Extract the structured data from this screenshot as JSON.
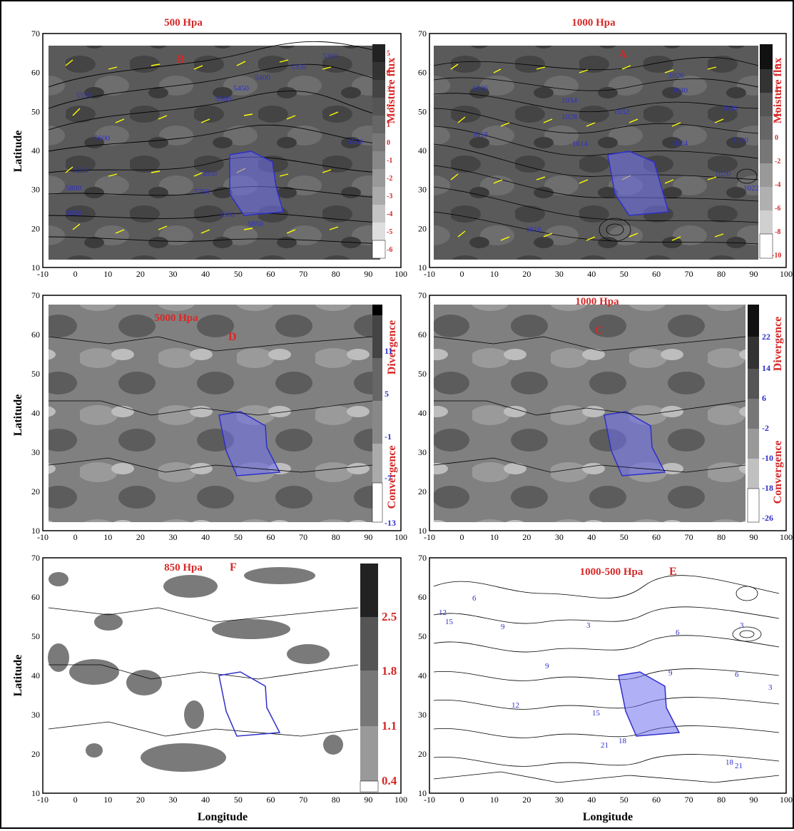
{
  "figure": {
    "axis_labels": {
      "latitude": "Latitude",
      "longitude": "Longitude"
    },
    "x_ticks": [
      "-10",
      "0",
      "10",
      "20",
      "30",
      "40",
      "50",
      "60",
      "70",
      "80",
      "90",
      "100"
    ],
    "y_ticks": [
      "10",
      "20",
      "30",
      "40",
      "50",
      "60",
      "70"
    ],
    "x_range": [
      -10,
      100
    ],
    "y_range": [
      10,
      70
    ],
    "colors": {
      "title_red": "#d62828",
      "contour_blue": "#2f2fc8",
      "iran_fill": "#6f6ff0",
      "arrow_yellow": "#ffff00"
    }
  },
  "panels": [
    {
      "id": "B",
      "title": "500 Hpa",
      "letter": "B",
      "type": "geopotential-height-moisture-flux",
      "colorbar": {
        "label": "Moisture flux",
        "ticks": [
          "5",
          "4",
          "3",
          "2",
          "1",
          "0",
          "-1",
          "-2",
          "-3",
          "-4",
          "-5",
          "-6"
        ]
      },
      "contour_labels": [
        "5300",
        "5350",
        "5400",
        "5450",
        "5500",
        "5550",
        "5600",
        "5650",
        "5700",
        "5750",
        "5800",
        "5850",
        "5500",
        "5550",
        "5600"
      ]
    },
    {
      "id": "A",
      "title": "1000 Hpa",
      "letter": "A",
      "type": "sea-level-pressure-moisture-flux",
      "colorbar": {
        "label": "Moisture flux",
        "ticks": [
          "6",
          "4",
          "2",
          "0",
          "-2",
          "-4",
          "-6",
          "-8",
          "-10"
        ]
      },
      "contour_labels": [
        "1026",
        "1030",
        "1034",
        "1032",
        "1036",
        "1030",
        "1028",
        "1024",
        "1020",
        "1016",
        "1014",
        "1018",
        "1022",
        "1026"
      ]
    },
    {
      "id": "D",
      "title": "5000 Hpa",
      "letter": "D",
      "type": "divergence",
      "colorbar": {
        "label_top": "Divergence",
        "label_bottom": "Convergence",
        "ticks": [
          "11",
          "5",
          "-1",
          "-7",
          "-13"
        ]
      }
    },
    {
      "id": "C",
      "title": "1000 Hpa",
      "letter": "C",
      "type": "divergence",
      "colorbar": {
        "label_top": "Divergence",
        "label_bottom": "Convergence",
        "ticks": [
          "22",
          "14",
          "6",
          "-2",
          "-10",
          "-18",
          "-26"
        ]
      }
    },
    {
      "id": "F",
      "title": "850 Hpa",
      "letter": "F",
      "type": "shaded-field",
      "colorbar": {
        "ticks": [
          "2.5",
          "1.8",
          "1.1",
          "0.4"
        ]
      }
    },
    {
      "id": "E",
      "title": "1000-500 Hpa",
      "letter": "E",
      "type": "thickness-contours",
      "contour_labels": [
        "3",
        "6",
        "9",
        "12",
        "15",
        "18",
        "21",
        "3",
        "6",
        "9",
        "12",
        "15",
        "18",
        "21",
        "6",
        "9",
        "3"
      ]
    }
  ]
}
